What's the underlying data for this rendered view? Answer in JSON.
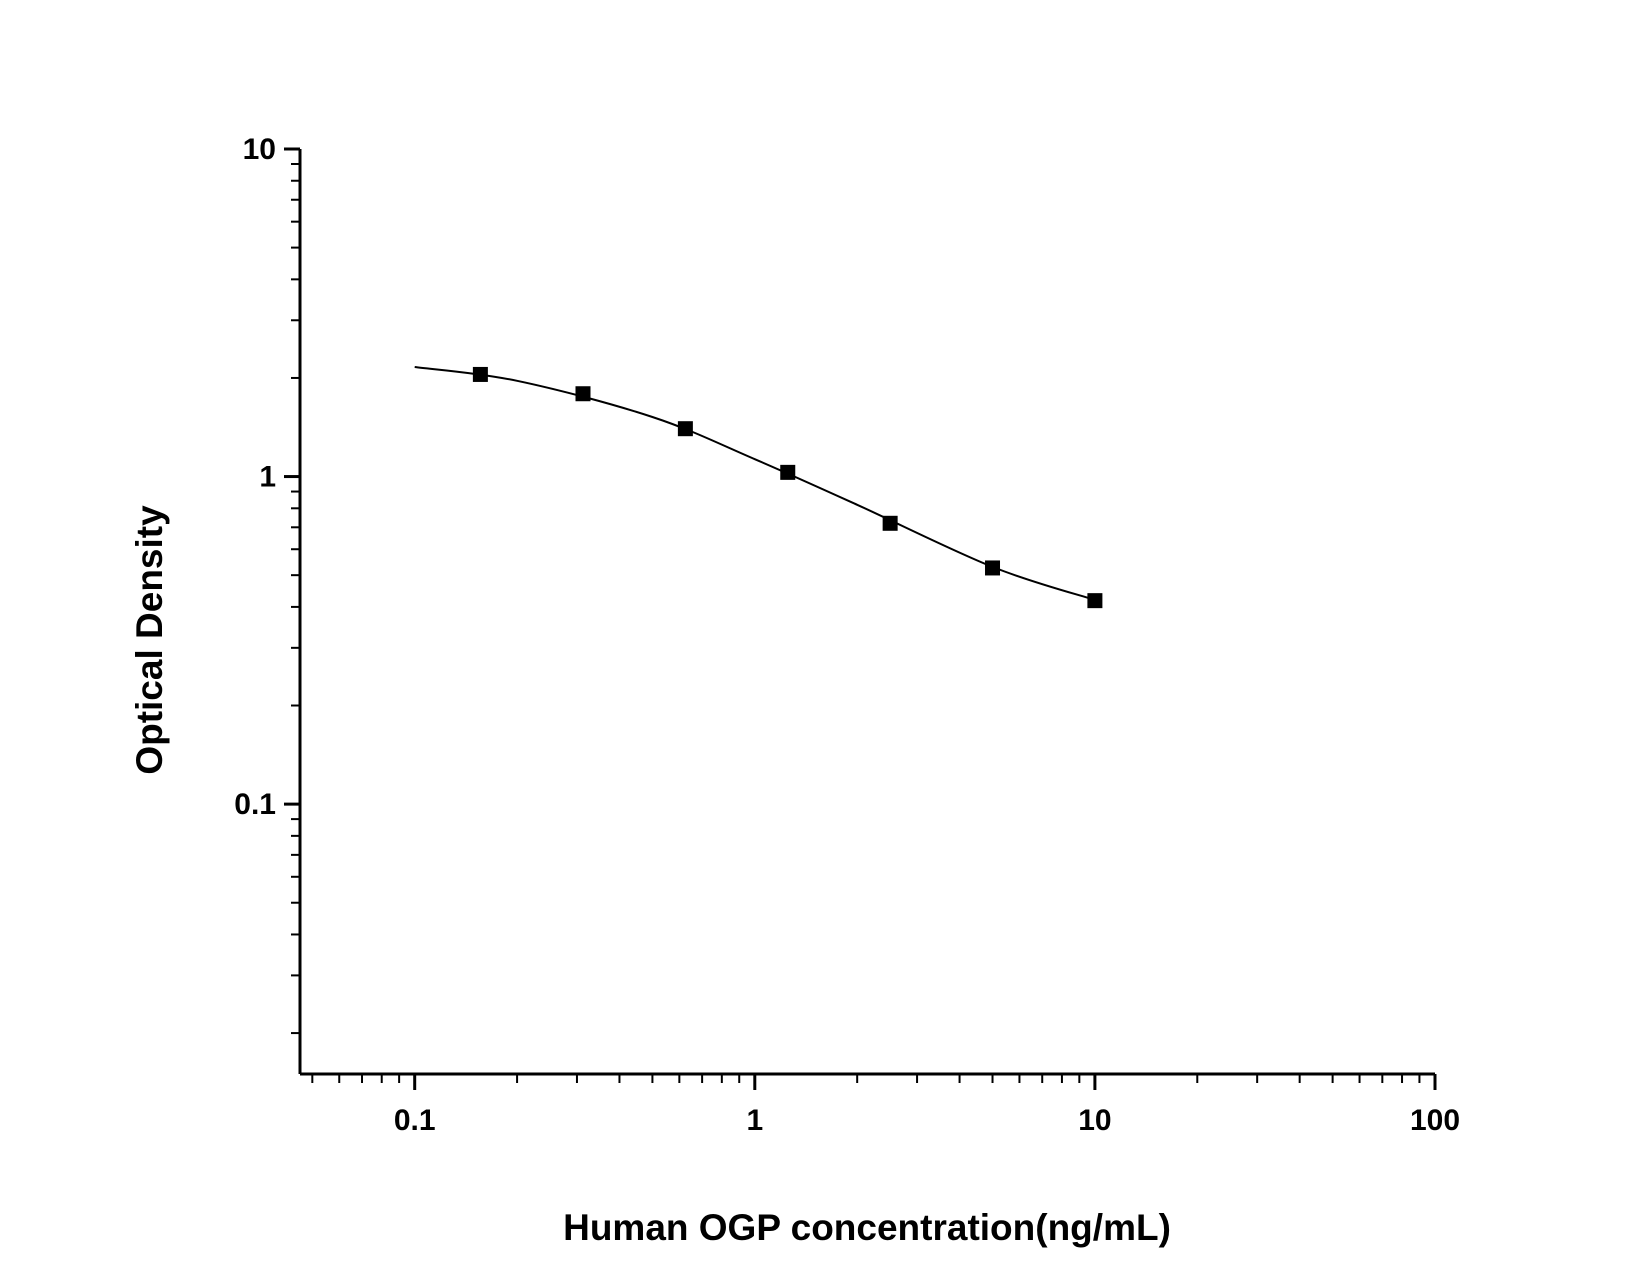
{
  "chart_data": {
    "type": "scatter",
    "x_label": "Human OGP concentration(ng/mL)",
    "y_label": "Optical Density",
    "log_x": true,
    "log_y": true,
    "minor_ticks": true,
    "xlim": [
      0.046,
      100
    ],
    "ylim": [
      0.015,
      10
    ],
    "xticks": [
      0.1,
      1,
      10,
      100
    ],
    "yticks": [
      0.1,
      1,
      10
    ],
    "series": [
      {
        "color": "#000000",
        "marker": "square",
        "x": [
          0.156,
          0.3125,
          0.625,
          1.25,
          2.5,
          5,
          10
        ],
        "values": [
          2.05,
          1.79,
          1.4,
          1.03,
          0.72,
          0.526,
          0.418
        ]
      },
      {
        "color": "#000000",
        "line": true,
        "x": [
          0.1,
          0.2,
          0.5,
          1,
          2,
          5,
          10
        ],
        "values": [
          2.16,
          1.96,
          1.52,
          1.13,
          0.82,
          0.53,
          0.42
        ]
      }
    ]
  }
}
